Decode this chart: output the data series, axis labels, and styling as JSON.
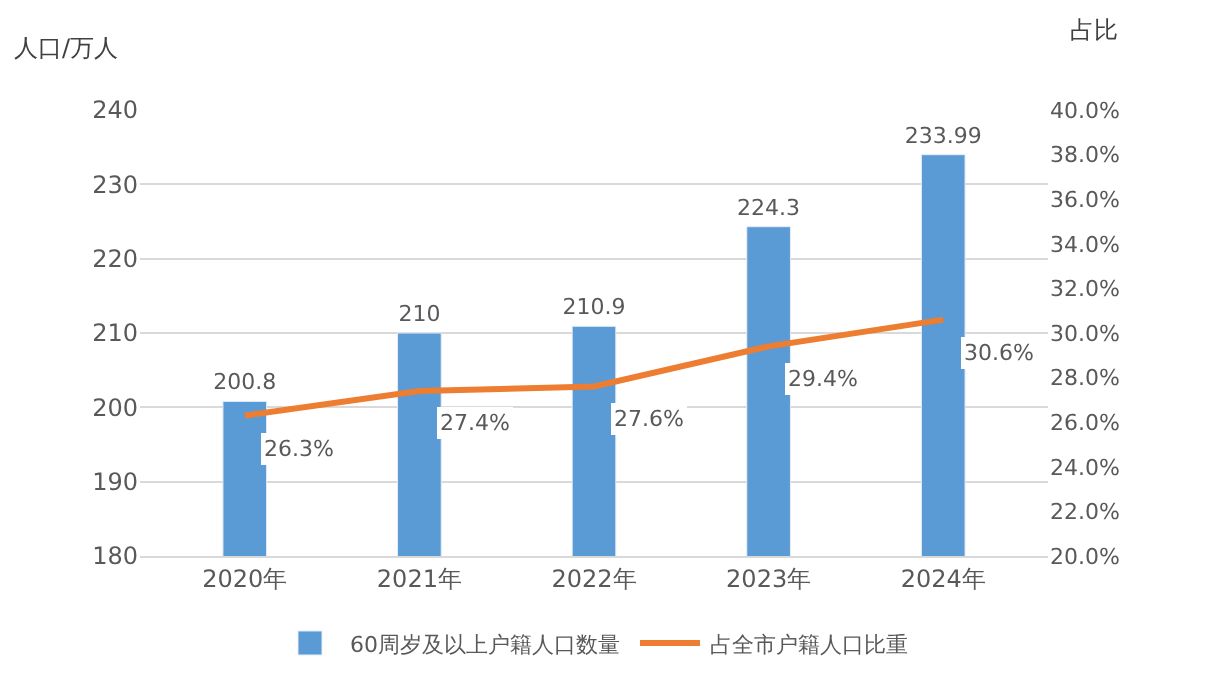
{
  "chart_data": {
    "type": "bar",
    "ylabel": "人口/万人",
    "y2label": "占比",
    "categories": [
      "2020年",
      "2021年",
      "2022年",
      "2023年",
      "2024年"
    ],
    "series": [
      {
        "name": "60周岁及以上户籍人口数量",
        "color": "#5b9bd5",
        "values": [
          200.8,
          210,
          210.9,
          224.3,
          233.99
        ],
        "value_labels": [
          "200.8",
          "210",
          "210.9",
          "224.3",
          "233.99"
        ]
      },
      {
        "name": "占全市户籍人口比重",
        "type": "line",
        "axis": "y2",
        "color": "#ed7d31",
        "values": [
          26.3,
          27.4,
          27.6,
          29.4,
          30.6
        ],
        "value_labels": [
          "26.3%",
          "27.4%",
          "27.6%",
          "29.4%",
          "30.6%"
        ]
      }
    ],
    "ylim": [
      180,
      240
    ],
    "yticks": [
      180,
      190,
      200,
      210,
      220,
      230,
      240
    ],
    "y2lim": [
      20,
      40
    ],
    "y2ticks": [
      {
        "value": 20,
        "label": "20.0%"
      },
      {
        "value": 22,
        "label": "22.0%"
      },
      {
        "value": 24,
        "label": "24.0%"
      },
      {
        "value": 26,
        "label": "26.0%"
      },
      {
        "value": 28,
        "label": "28.0%"
      },
      {
        "value": 30,
        "label": "30.0%"
      },
      {
        "value": 32,
        "label": "32.0%"
      },
      {
        "value": 34,
        "label": "34.0%"
      },
      {
        "value": 36,
        "label": "36.0%"
      },
      {
        "value": 38,
        "label": "38.0%"
      },
      {
        "value": 40,
        "label": "40.0%"
      }
    ],
    "grid": "y",
    "legend": "bottom",
    "marker": "none",
    "line_style": "solid"
  }
}
